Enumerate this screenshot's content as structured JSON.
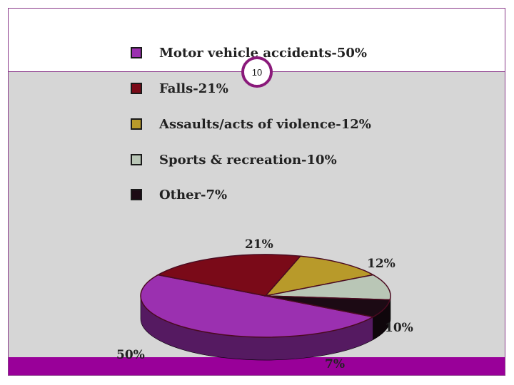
{
  "slide": {
    "number": "10"
  },
  "chart_data": {
    "type": "pie",
    "title": "",
    "categories": [
      "Motor vehicle accidents",
      "Falls",
      "Assaults/acts of violence",
      "Sports & recreation",
      "Other"
    ],
    "values": [
      50,
      21,
      12,
      10,
      7
    ],
    "value_labels": [
      "50%",
      "21%",
      "12%",
      "10%",
      "7%"
    ],
    "legend_entries": [
      "Motor vehicle accidents-50%",
      "Falls-21%",
      "Assaults/acts of violence-12%",
      "Sports & recreation-10%",
      "Other-7%"
    ],
    "colors": [
      "#9b30b0",
      "#7a0a18",
      "#b89a2a",
      "#b9c6b6",
      "#1c0a14"
    ],
    "legend_placement": "top",
    "three_d": true
  },
  "colors": {
    "frame": "#8a3a8a",
    "bottom_bar": "#990099",
    "content_background": "#d6d6d6"
  }
}
